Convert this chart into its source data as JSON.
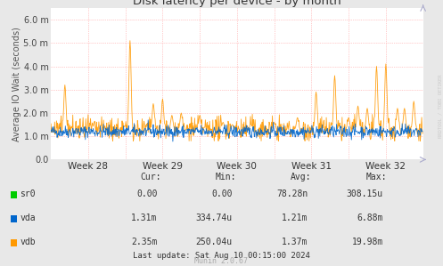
{
  "title": "Disk latency per device - by month",
  "ylabel": "Average IO Wait (seconds)",
  "x_tick_labels": [
    "Week 28",
    "Week 29",
    "Week 30",
    "Week 31",
    "Week 32"
  ],
  "ylim": [
    0.0,
    0.0065
  ],
  "yticks": [
    0.0,
    0.001,
    0.002,
    0.003,
    0.004,
    0.005,
    0.006
  ],
  "bg_color": "#e8e8e8",
  "plot_bg_color": "#ffffff",
  "grid_color": "#ff9999",
  "title_color": "#333333",
  "series": [
    {
      "name": "sr0",
      "color": "#00cc00",
      "base": 0.0,
      "noise": 0.0
    },
    {
      "name": "vda",
      "color": "#0066cc",
      "base": 0.0012,
      "noise": 0.00013
    },
    {
      "name": "vdb",
      "color": "#ff9900",
      "base": 0.0013,
      "noise": 0.00025
    }
  ],
  "legend_data": {
    "headers": [
      "Cur:",
      "Min:",
      "Avg:",
      "Max:"
    ],
    "rows": [
      {
        "name": "sr0",
        "color": "#00cc00",
        "values": [
          "0.00",
          "0.00",
          "78.28n",
          "308.15u"
        ]
      },
      {
        "name": "vda",
        "color": "#0066cc",
        "values": [
          "1.31m",
          "334.74u",
          "1.21m",
          "6.88m"
        ]
      },
      {
        "name": "vdb",
        "color": "#ff9900",
        "values": [
          "2.35m",
          "250.04u",
          "1.37m",
          "19.98m"
        ]
      }
    ]
  },
  "last_update": "Last update: Sat Aug 10 00:15:00 2024",
  "munin_version": "Munin 2.0.67",
  "rrdtool_text": "RRDTOOL / TOBI OETIKER",
  "n_points": 800,
  "week_boundaries": [
    0,
    160,
    320,
    480,
    640,
    800
  ],
  "spike_positions_vdb": [
    30,
    170,
    220,
    240,
    260,
    280,
    320,
    370,
    390,
    430,
    480,
    530,
    570,
    610,
    640,
    660,
    680,
    700,
    720,
    745,
    760,
    780
  ],
  "spike_heights_vdb": [
    0.0032,
    0.0051,
    0.0024,
    0.0026,
    0.0019,
    0.002,
    0.0019,
    0.0016,
    0.0015,
    0.0015,
    0.0016,
    0.0018,
    0.0029,
    0.0036,
    0.0018,
    0.0023,
    0.0022,
    0.004,
    0.0041,
    0.0022,
    0.0022,
    0.0025
  ]
}
